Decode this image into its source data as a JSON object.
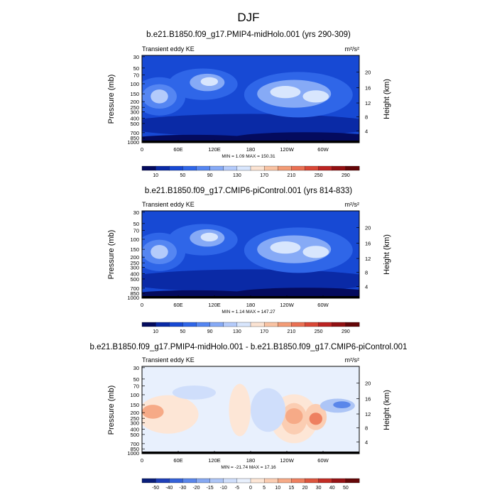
{
  "page_title": "DJF",
  "chart_data": [
    {
      "type": "contour",
      "title": "b.e21.B1850.f09_g17.PMIP4-midHolo.001 (yrs 290-309)",
      "left_label": "Transient eddy KE",
      "units": "m²/s²",
      "ylabel": "Pressure (mb)",
      "ylabel_right": "Height (km)",
      "x_ticks": [
        "0",
        "60E",
        "120E",
        "180",
        "120W",
        "60W"
      ],
      "y_ticks": [
        "30",
        "50",
        "70",
        "100",
        "150",
        "200",
        "250",
        "300",
        "400",
        "500",
        "700",
        "850",
        "1000"
      ],
      "height_ticks": [
        "20",
        "16",
        "12",
        "8",
        "4"
      ],
      "minmax": "MIN =    1.09  MAX = 150.31",
      "colorbar_labels": [
        "10",
        "50",
        "90",
        "130",
        "170",
        "210",
        "250",
        "290"
      ],
      "colors": [
        "#040b5e",
        "#0a2aa6",
        "#1749d4",
        "#2f66e8",
        "#5586f2",
        "#86aaf6",
        "#b4cbfb",
        "#d8e6fd",
        "#fbe3d2",
        "#f9c3a3",
        "#f39c76",
        "#ea7053",
        "#d94736",
        "#bc2322",
        "#921012",
        "#640608"
      ]
    },
    {
      "type": "contour",
      "title": "b.e21.B1850.f09_g17.CMIP6-piControl.001 (yrs 814-833)",
      "left_label": "Transient eddy KE",
      "units": "m²/s²",
      "ylabel": "Pressure (mb)",
      "ylabel_right": "Height (km)",
      "x_ticks": [
        "0",
        "60E",
        "120E",
        "180",
        "120W",
        "60W"
      ],
      "y_ticks": [
        "30",
        "50",
        "70",
        "100",
        "150",
        "200",
        "250",
        "300",
        "400",
        "500",
        "700",
        "850",
        "1000"
      ],
      "height_ticks": [
        "20",
        "16",
        "12",
        "8",
        "4"
      ],
      "minmax": "MIN =    1.14  MAX = 147.27",
      "colorbar_labels": [
        "10",
        "50",
        "90",
        "130",
        "170",
        "210",
        "250",
        "290"
      ],
      "colors": [
        "#040b5e",
        "#0a2aa6",
        "#1749d4",
        "#2f66e8",
        "#5586f2",
        "#86aaf6",
        "#b4cbfb",
        "#d8e6fd",
        "#fbe3d2",
        "#f9c3a3",
        "#f39c76",
        "#ea7053",
        "#d94736",
        "#bc2322",
        "#921012",
        "#640608"
      ]
    },
    {
      "type": "contour",
      "title": "b.e21.B1850.f09_g17.PMIP4-midHolo.001 - b.e21.B1850.f09_g17.CMIP6-piControl.001",
      "left_label": "Transient eddy KE",
      "units": "m²/s²",
      "ylabel": "Pressure (mb)",
      "ylabel_right": "Height (km)",
      "x_ticks": [
        "0",
        "60E",
        "120E",
        "180",
        "120W",
        "60W"
      ],
      "y_ticks": [
        "30",
        "50",
        "70",
        "100",
        "150",
        "200",
        "250",
        "300",
        "400",
        "500",
        "700",
        "850",
        "1000"
      ],
      "height_ticks": [
        "20",
        "16",
        "12",
        "8",
        "4"
      ],
      "minmax": "MIN = -21.74  MAX =  17.16",
      "colorbar_labels": [
        "-50",
        "-40",
        "-30",
        "-20",
        "-15",
        "-10",
        "-5",
        "0",
        "5",
        "10",
        "15",
        "20",
        "30",
        "40",
        "50"
      ],
      "colors": [
        "#0a1e7a",
        "#1f3fb8",
        "#3562d8",
        "#5a86ea",
        "#86a8f1",
        "#adc5f6",
        "#cfdefb",
        "#e8f0fd",
        "#fde6d6",
        "#fbcdb2",
        "#f6aa87",
        "#ee8060",
        "#dc553d",
        "#c22d25",
        "#961316",
        "#650708"
      ]
    }
  ]
}
